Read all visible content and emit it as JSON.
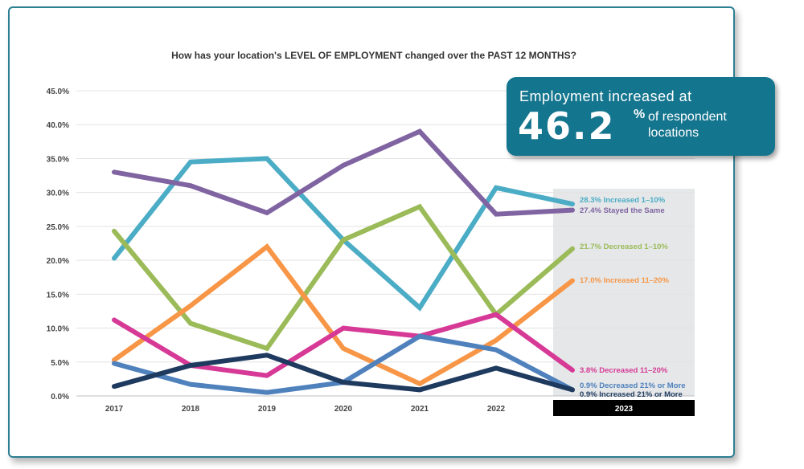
{
  "chart_data": {
    "type": "line",
    "title": "How has your location's LEVEL OF EMPLOYMENT changed over the PAST 12 MONTHS?",
    "categories": [
      "2017",
      "2018",
      "2019",
      "2020",
      "2021",
      "2022",
      "2023"
    ],
    "y_ticks": [
      "0.0%",
      "5.0%",
      "10.0%",
      "15.0%",
      "20.0%",
      "25.0%",
      "30.0%",
      "35.0%",
      "40.0%",
      "45.0%"
    ],
    "ylim": [
      0,
      45
    ],
    "grid": true,
    "series": [
      {
        "name": "Increased 1–10%",
        "label": "28.3% Increased 1–10%",
        "color": "#4bacc6",
        "values": [
          20.3,
          34.5,
          35.0,
          23.0,
          13.0,
          30.7,
          28.3
        ]
      },
      {
        "name": "Stayed the Same",
        "label": "27.4% Stayed the Same",
        "color": "#8064a2",
        "values": [
          33.0,
          31.0,
          27.0,
          34.0,
          39.0,
          26.8,
          27.4
        ]
      },
      {
        "name": "Decreased 1–10%",
        "label": "21.7% Decreased 1–10%",
        "color": "#9bbb59",
        "values": [
          24.3,
          10.7,
          7.0,
          23.0,
          27.9,
          12.0,
          21.7
        ]
      },
      {
        "name": "Increased 11–20%",
        "label": "17.0% Increased 11–20%",
        "color": "#f79646",
        "values": [
          5.3,
          13.3,
          22.0,
          7.0,
          1.8,
          8.2,
          17.0
        ]
      },
      {
        "name": "Decreased 11–20%",
        "label": "3.8% Decreased 11–20%",
        "color": "#d63a96",
        "values": [
          11.2,
          4.5,
          3.0,
          10.0,
          8.8,
          12.0,
          3.8
        ]
      },
      {
        "name": "Decreased 21% or More",
        "label": "0.9% Decreased 21% or More",
        "color": "#4f81bd",
        "values": [
          4.8,
          1.7,
          0.5,
          2.0,
          8.8,
          6.8,
          0.9
        ]
      },
      {
        "name": "Increased 21% or More",
        "label": "0.9% Increased 21% or More",
        "color": "#1f3a5f",
        "values": [
          1.4,
          4.5,
          6.0,
          2.0,
          0.9,
          4.1,
          0.9
        ]
      }
    ]
  },
  "callout": {
    "line1": "Employment increased at",
    "value": "46.2",
    "pct": "%",
    "line2a": "of respondent",
    "line2b": "locations"
  }
}
